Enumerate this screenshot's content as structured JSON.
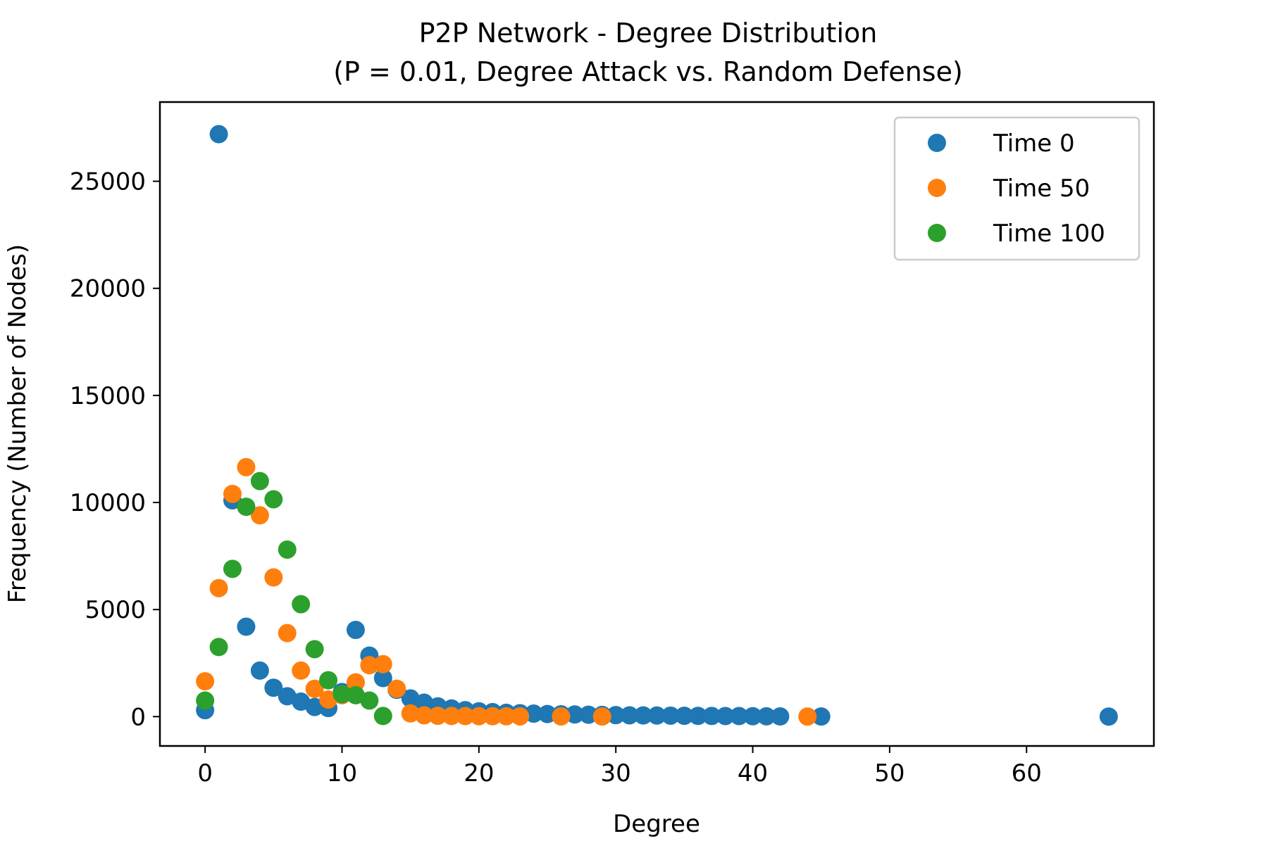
{
  "chart_data": {
    "type": "scatter",
    "title": "P2P Network - Degree Distribution",
    "subtitle": "(P = 0.01, Degree Attack vs. Random Defense)",
    "xlabel": "Degree",
    "ylabel": "Frequency (Number of Nodes)",
    "xlim": [
      -3.3,
      69.3
    ],
    "ylim": [
      -1370,
      28700
    ],
    "xticks": [
      0,
      10,
      20,
      30,
      40,
      50,
      60
    ],
    "yticks": [
      0,
      5000,
      10000,
      15000,
      20000,
      25000
    ],
    "grid": false,
    "legend_position": "top-right",
    "series": [
      {
        "name": "Time 0",
        "color": "#1f77b4",
        "points": [
          [
            0,
            300
          ],
          [
            1,
            27200
          ],
          [
            2,
            10100
          ],
          [
            3,
            4200
          ],
          [
            4,
            2150
          ],
          [
            5,
            1350
          ],
          [
            6,
            950
          ],
          [
            7,
            700
          ],
          [
            8,
            450
          ],
          [
            9,
            400
          ],
          [
            10,
            1150
          ],
          [
            11,
            4050
          ],
          [
            12,
            2850
          ],
          [
            13,
            1800
          ],
          [
            14,
            1250
          ],
          [
            15,
            850
          ],
          [
            16,
            650
          ],
          [
            17,
            480
          ],
          [
            18,
            380
          ],
          [
            19,
            300
          ],
          [
            20,
            250
          ],
          [
            21,
            210
          ],
          [
            22,
            180
          ],
          [
            23,
            160
          ],
          [
            24,
            140
          ],
          [
            25,
            120
          ],
          [
            26,
            110
          ],
          [
            27,
            100
          ],
          [
            28,
            90
          ],
          [
            29,
            80
          ],
          [
            30,
            70
          ],
          [
            31,
            60
          ],
          [
            32,
            55
          ],
          [
            33,
            50
          ],
          [
            34,
            45
          ],
          [
            35,
            40
          ],
          [
            36,
            35
          ],
          [
            37,
            30
          ],
          [
            38,
            28
          ],
          [
            39,
            25
          ],
          [
            40,
            20
          ],
          [
            41,
            15
          ],
          [
            42,
            10
          ],
          [
            45,
            5
          ],
          [
            66,
            2
          ]
        ]
      },
      {
        "name": "Time 50",
        "color": "#ff7f0e",
        "points": [
          [
            0,
            1650
          ],
          [
            1,
            6000
          ],
          [
            2,
            10400
          ],
          [
            3,
            11650
          ],
          [
            4,
            9400
          ],
          [
            5,
            6500
          ],
          [
            6,
            3900
          ],
          [
            7,
            2150
          ],
          [
            8,
            1300
          ],
          [
            9,
            800
          ],
          [
            10,
            1000
          ],
          [
            11,
            1600
          ],
          [
            12,
            2400
          ],
          [
            13,
            2450
          ],
          [
            14,
            1300
          ],
          [
            15,
            150
          ],
          [
            16,
            60
          ],
          [
            17,
            40
          ],
          [
            18,
            30
          ],
          [
            19,
            25
          ],
          [
            20,
            20
          ],
          [
            21,
            18
          ],
          [
            22,
            15
          ],
          [
            23,
            12
          ],
          [
            26,
            8
          ],
          [
            29,
            5
          ],
          [
            44,
            3
          ]
        ]
      },
      {
        "name": "Time 100",
        "color": "#2ca02c",
        "points": [
          [
            0,
            750
          ],
          [
            1,
            3250
          ],
          [
            2,
            6900
          ],
          [
            3,
            9800
          ],
          [
            4,
            11000
          ],
          [
            5,
            10150
          ],
          [
            6,
            7800
          ],
          [
            7,
            5250
          ],
          [
            8,
            3150
          ],
          [
            9,
            1700
          ],
          [
            10,
            1050
          ],
          [
            11,
            1000
          ],
          [
            12,
            750
          ],
          [
            13,
            30
          ]
        ]
      }
    ]
  }
}
